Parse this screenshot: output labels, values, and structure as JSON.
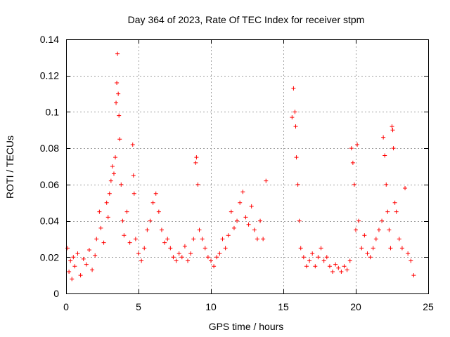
{
  "chart_data": {
    "type": "scatter",
    "title": "Day 364 of 2023, Rate Of TEC Index for receiver stpm",
    "xlabel": "GPS time / hours",
    "ylabel": "ROTI / TECUs",
    "xlim": [
      0,
      25
    ],
    "ylim": [
      0,
      0.14
    ],
    "xticks": [
      0,
      5,
      10,
      15,
      20,
      25
    ],
    "xtick_labels": [
      "0",
      "5",
      "10",
      "15",
      "20",
      "25"
    ],
    "yticks": [
      0,
      0.02,
      0.04,
      0.06,
      0.08,
      0.1,
      0.12,
      0.14
    ],
    "ytick_labels": [
      "0",
      "0.02",
      "0.04",
      "0.06",
      "0.08",
      "0.1",
      "0.12",
      "0.14"
    ],
    "grid": true,
    "marker": "+",
    "color": "#ff0000",
    "series": [
      {
        "name": "ROTI",
        "points": [
          [
            0.1,
            0.025
          ],
          [
            0.2,
            0.012
          ],
          [
            0.3,
            0.018
          ],
          [
            0.4,
            0.008
          ],
          [
            0.5,
            0.02
          ],
          [
            0.6,
            0.015
          ],
          [
            0.8,
            0.022
          ],
          [
            1.0,
            0.01
          ],
          [
            1.2,
            0.019
          ],
          [
            1.4,
            0.016
          ],
          [
            1.6,
            0.024
          ],
          [
            1.8,
            0.013
          ],
          [
            2.0,
            0.021
          ],
          [
            2.1,
            0.03
          ],
          [
            2.3,
            0.045
          ],
          [
            2.4,
            0.036
          ],
          [
            2.6,
            0.028
          ],
          [
            2.8,
            0.05
          ],
          [
            2.9,
            0.042
          ],
          [
            3.0,
            0.055
          ],
          [
            3.1,
            0.062
          ],
          [
            3.2,
            0.07
          ],
          [
            3.3,
            0.066
          ],
          [
            3.4,
            0.075
          ],
          [
            3.45,
            0.105
          ],
          [
            3.5,
            0.116
          ],
          [
            3.55,
            0.132
          ],
          [
            3.6,
            0.11
          ],
          [
            3.65,
            0.098
          ],
          [
            3.7,
            0.085
          ],
          [
            3.8,
            0.06
          ],
          [
            3.9,
            0.04
          ],
          [
            4.0,
            0.032
          ],
          [
            4.2,
            0.045
          ],
          [
            4.4,
            0.028
          ],
          [
            4.6,
            0.082
          ],
          [
            4.65,
            0.065
          ],
          [
            4.7,
            0.055
          ],
          [
            4.8,
            0.03
          ],
          [
            5.0,
            0.022
          ],
          [
            5.2,
            0.018
          ],
          [
            5.4,
            0.025
          ],
          [
            5.6,
            0.035
          ],
          [
            5.8,
            0.04
          ],
          [
            6.0,
            0.05
          ],
          [
            6.2,
            0.055
          ],
          [
            6.4,
            0.045
          ],
          [
            6.6,
            0.035
          ],
          [
            6.8,
            0.028
          ],
          [
            7.0,
            0.03
          ],
          [
            7.2,
            0.025
          ],
          [
            7.4,
            0.02
          ],
          [
            7.6,
            0.018
          ],
          [
            7.8,
            0.022
          ],
          [
            8.0,
            0.02
          ],
          [
            8.2,
            0.026
          ],
          [
            8.4,
            0.018
          ],
          [
            8.6,
            0.022
          ],
          [
            8.8,
            0.03
          ],
          [
            8.95,
            0.072
          ],
          [
            9.0,
            0.075
          ],
          [
            9.1,
            0.06
          ],
          [
            9.2,
            0.035
          ],
          [
            9.4,
            0.03
          ],
          [
            9.6,
            0.025
          ],
          [
            9.8,
            0.02
          ],
          [
            10.0,
            0.018
          ],
          [
            10.2,
            0.015
          ],
          [
            10.4,
            0.02
          ],
          [
            10.6,
            0.022
          ],
          [
            10.8,
            0.03
          ],
          [
            11.0,
            0.025
          ],
          [
            11.2,
            0.032
          ],
          [
            11.4,
            0.045
          ],
          [
            11.6,
            0.036
          ],
          [
            11.8,
            0.04
          ],
          [
            12.0,
            0.05
          ],
          [
            12.2,
            0.056
          ],
          [
            12.4,
            0.042
          ],
          [
            12.6,
            0.038
          ],
          [
            12.8,
            0.048
          ],
          [
            13.0,
            0.035
          ],
          [
            13.2,
            0.03
          ],
          [
            13.4,
            0.04
          ],
          [
            13.6,
            0.03
          ],
          [
            13.8,
            0.062
          ],
          [
            15.6,
            0.097
          ],
          [
            15.7,
            0.113
          ],
          [
            15.8,
            0.1
          ],
          [
            15.85,
            0.092
          ],
          [
            15.9,
            0.075
          ],
          [
            16.0,
            0.06
          ],
          [
            16.1,
            0.04
          ],
          [
            16.2,
            0.025
          ],
          [
            16.4,
            0.02
          ],
          [
            16.6,
            0.015
          ],
          [
            16.8,
            0.018
          ],
          [
            17.0,
            0.022
          ],
          [
            17.2,
            0.015
          ],
          [
            17.4,
            0.02
          ],
          [
            17.6,
            0.025
          ],
          [
            17.8,
            0.018
          ],
          [
            18.0,
            0.02
          ],
          [
            18.2,
            0.015
          ],
          [
            18.4,
            0.012
          ],
          [
            18.6,
            0.016
          ],
          [
            18.8,
            0.014
          ],
          [
            19.0,
            0.012
          ],
          [
            19.2,
            0.015
          ],
          [
            19.4,
            0.013
          ],
          [
            19.6,
            0.018
          ],
          [
            19.7,
            0.08
          ],
          [
            19.8,
            0.072
          ],
          [
            19.9,
            0.06
          ],
          [
            20.0,
            0.035
          ],
          [
            20.1,
            0.082
          ],
          [
            20.2,
            0.04
          ],
          [
            20.4,
            0.025
          ],
          [
            20.6,
            0.032
          ],
          [
            20.8,
            0.022
          ],
          [
            21.0,
            0.02
          ],
          [
            21.2,
            0.025
          ],
          [
            21.4,
            0.03
          ],
          [
            21.6,
            0.035
          ],
          [
            21.8,
            0.04
          ],
          [
            21.9,
            0.086
          ],
          [
            22.0,
            0.076
          ],
          [
            22.1,
            0.06
          ],
          [
            22.2,
            0.045
          ],
          [
            22.3,
            0.035
          ],
          [
            22.4,
            0.025
          ],
          [
            22.5,
            0.092
          ],
          [
            22.55,
            0.09
          ],
          [
            22.6,
            0.08
          ],
          [
            22.7,
            0.05
          ],
          [
            22.8,
            0.045
          ],
          [
            23.0,
            0.03
          ],
          [
            23.2,
            0.025
          ],
          [
            23.4,
            0.058
          ],
          [
            23.6,
            0.022
          ],
          [
            23.8,
            0.018
          ],
          [
            24.0,
            0.01
          ]
        ]
      }
    ]
  }
}
